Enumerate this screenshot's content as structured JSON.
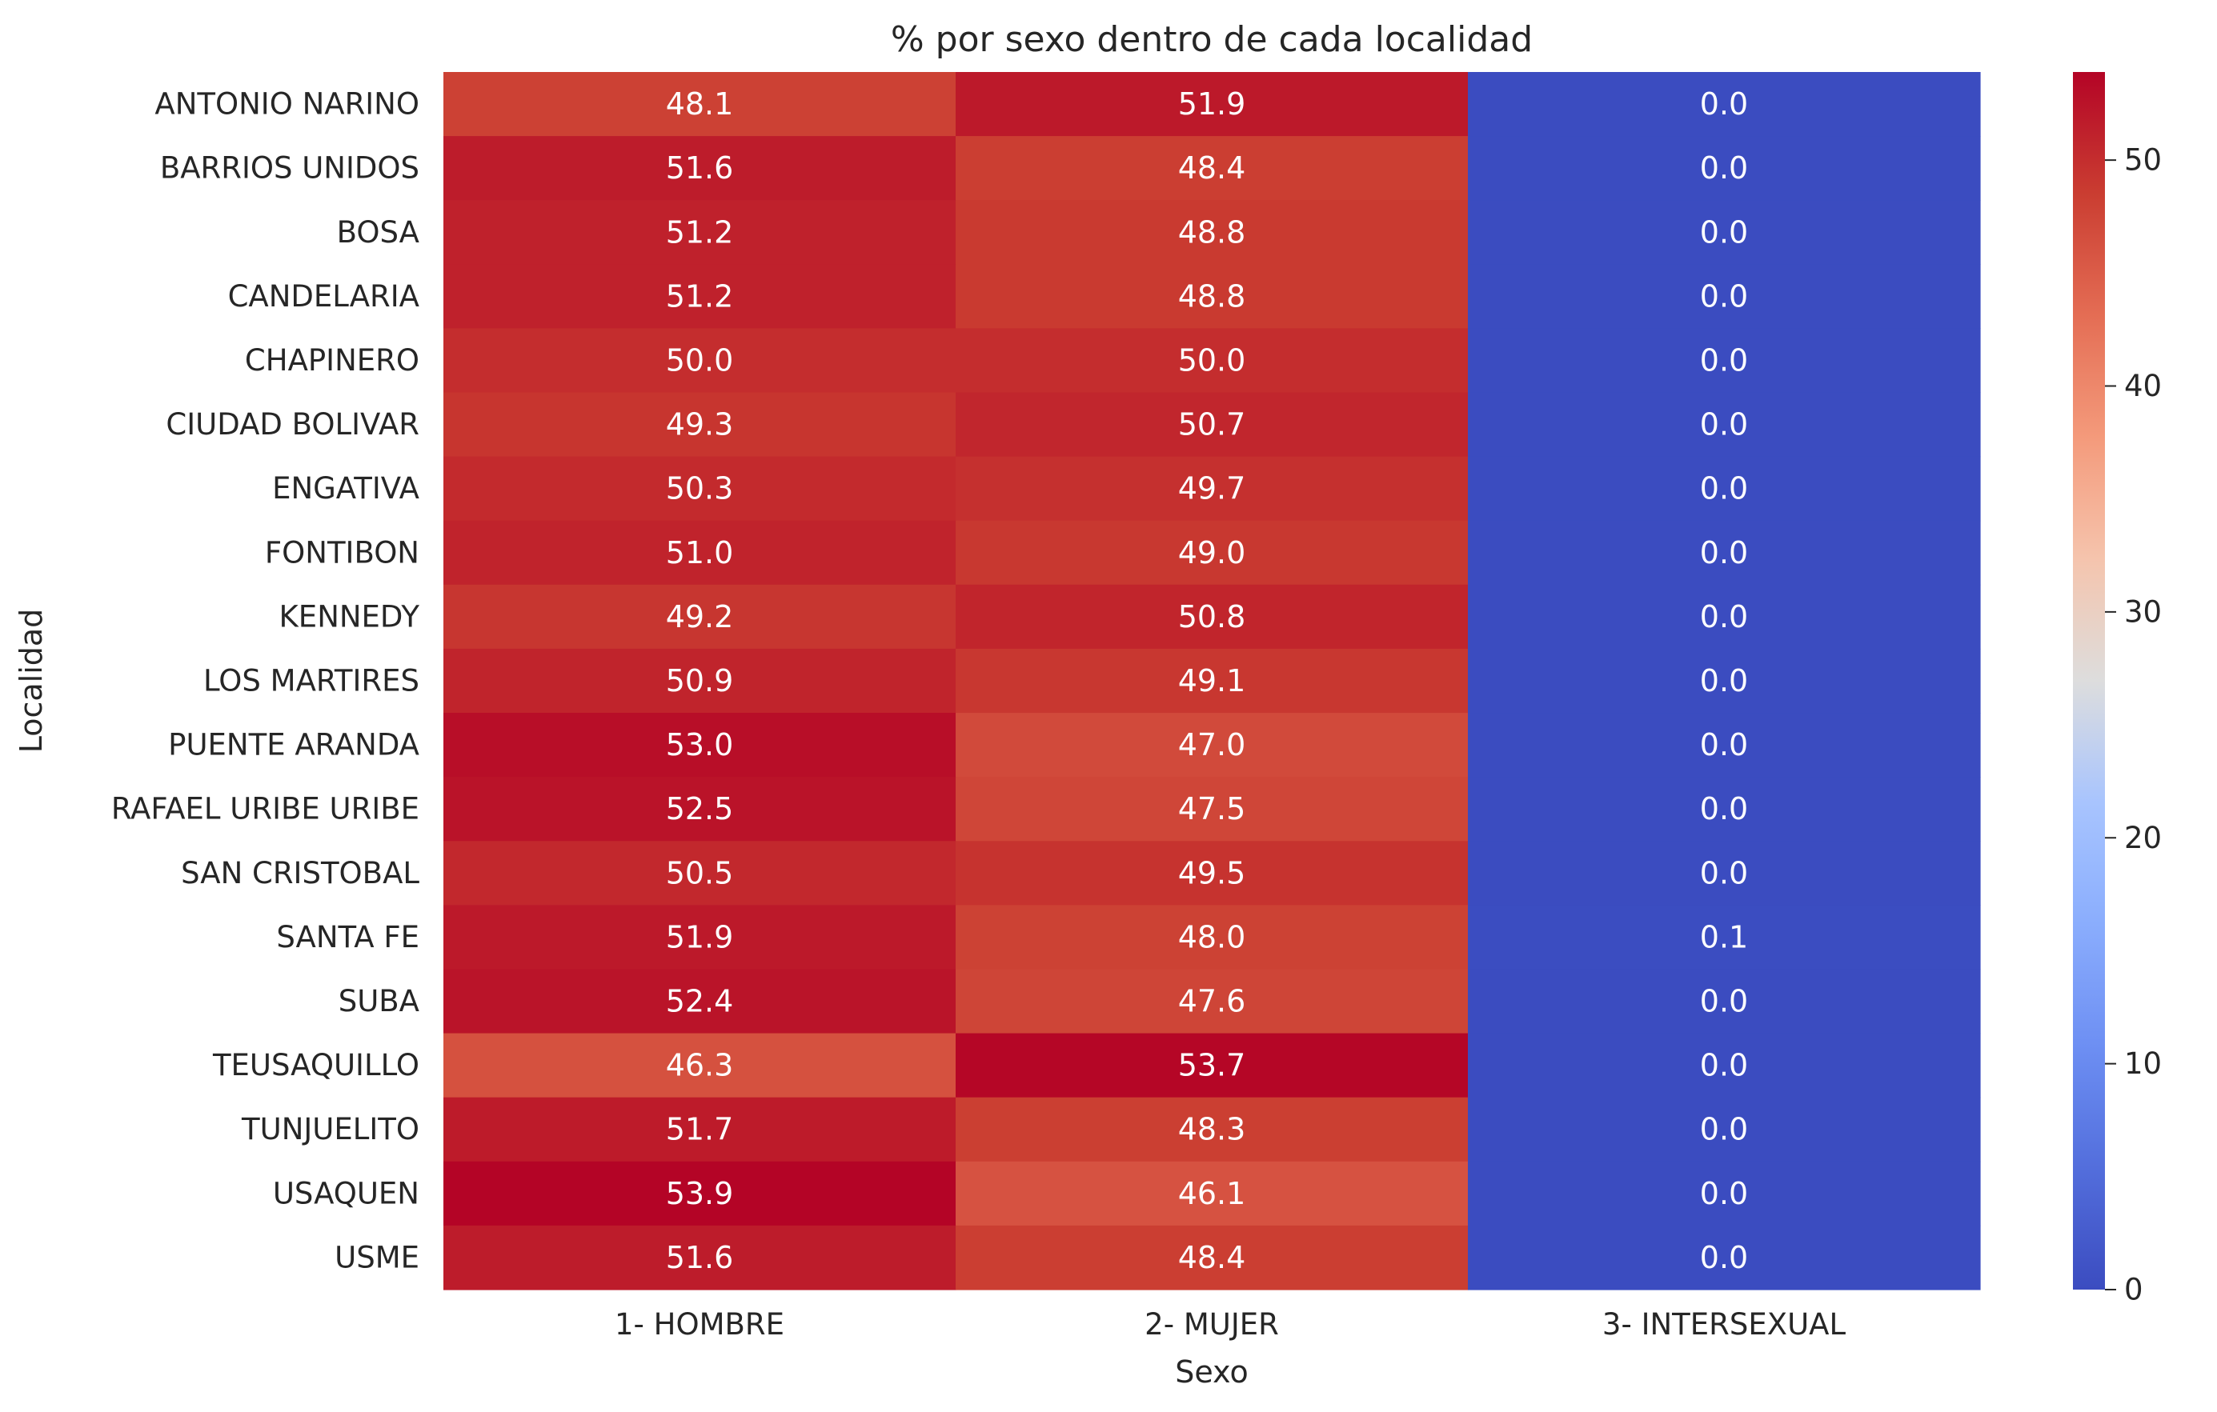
{
  "chart_data": {
    "type": "heatmap",
    "title": "% por sexo dentro de cada localidad",
    "xlabel": "Sexo",
    "ylabel": "Localidad",
    "x_categories": [
      "1- HOMBRE",
      "2- MUJER",
      "3- INTERSEXUAL"
    ],
    "y_categories": [
      "ANTONIO NARINO",
      "BARRIOS UNIDOS",
      "BOSA",
      "CANDELARIA",
      "CHAPINERO",
      "CIUDAD BOLIVAR",
      "ENGATIVA",
      "FONTIBON",
      "KENNEDY",
      "LOS MARTIRES",
      "PUENTE ARANDA",
      "RAFAEL URIBE URIBE",
      "SAN CRISTOBAL",
      "SANTA FE",
      "SUBA",
      "TEUSAQUILLO",
      "TUNJUELITO",
      "USAQUEN",
      "USME"
    ],
    "values": [
      [
        48.1,
        51.9,
        0.0
      ],
      [
        51.6,
        48.4,
        0.0
      ],
      [
        51.2,
        48.8,
        0.0
      ],
      [
        51.2,
        48.8,
        0.0
      ],
      [
        50.0,
        50.0,
        0.0
      ],
      [
        49.3,
        50.7,
        0.0
      ],
      [
        50.3,
        49.7,
        0.0
      ],
      [
        51.0,
        49.0,
        0.0
      ],
      [
        49.2,
        50.8,
        0.0
      ],
      [
        50.9,
        49.1,
        0.0
      ],
      [
        53.0,
        47.0,
        0.0
      ],
      [
        52.5,
        47.5,
        0.0
      ],
      [
        50.5,
        49.5,
        0.0
      ],
      [
        51.9,
        48.0,
        0.1
      ],
      [
        52.4,
        47.6,
        0.0
      ],
      [
        46.3,
        53.7,
        0.0
      ],
      [
        51.7,
        48.3,
        0.0
      ],
      [
        53.9,
        46.1,
        0.0
      ],
      [
        51.6,
        48.4,
        0.0
      ]
    ],
    "annotation_format": "0.1f",
    "colormap": "coolwarm",
    "color_range": [
      0,
      53.9
    ],
    "colorbar_ticks": [
      0,
      10,
      20,
      30,
      40,
      50
    ],
    "colorbar_tick_labels": [
      "0",
      "10",
      "20",
      "30",
      "40",
      "50"
    ],
    "cell_text_colors": {
      "light": "#ffffff",
      "dark": "#262626"
    },
    "background": "#ffffff"
  }
}
